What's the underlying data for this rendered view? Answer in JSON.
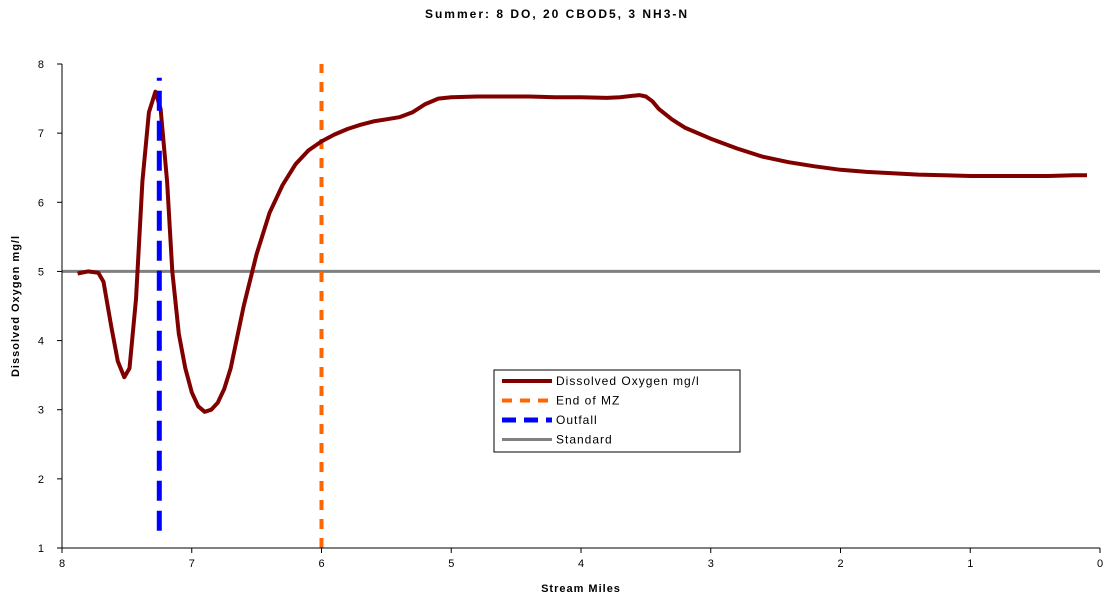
{
  "chart_data": {
    "type": "line",
    "title": "Summer: 8 DO, 20 CBOD5, 3 NH3-N",
    "xlabel": "Stream Miles",
    "ylabel": "Dissolved Oxygen mg/l",
    "xlim": [
      8,
      0
    ],
    "ylim": [
      1,
      8
    ],
    "x_ticks": [
      "8",
      "7",
      "6",
      "5",
      "4",
      "3",
      "2",
      "1",
      "0"
    ],
    "y_ticks": [
      "1",
      "2",
      "3",
      "4",
      "5",
      "6",
      "7",
      "8"
    ],
    "legend_position": "center-right",
    "grid": false,
    "series": [
      {
        "name": "Dissolved Oxygen mg/l",
        "color": "#800000",
        "style": "solid",
        "x": [
          7.88,
          7.8,
          7.72,
          7.68,
          7.62,
          7.57,
          7.52,
          7.48,
          7.43,
          7.38,
          7.33,
          7.28,
          7.24,
          7.19,
          7.15,
          7.1,
          7.05,
          7.0,
          6.95,
          6.9,
          6.85,
          6.8,
          6.75,
          6.7,
          6.6,
          6.5,
          6.4,
          6.3,
          6.2,
          6.1,
          6.0,
          5.9,
          5.8,
          5.7,
          5.6,
          5.5,
          5.4,
          5.3,
          5.2,
          5.1,
          5.0,
          4.8,
          4.6,
          4.4,
          4.2,
          4.0,
          3.8,
          3.7,
          3.6,
          3.55,
          3.5,
          3.45,
          3.4,
          3.3,
          3.2,
          3.0,
          2.8,
          2.6,
          2.4,
          2.2,
          2.0,
          1.8,
          1.6,
          1.4,
          1.2,
          1.0,
          0.8,
          0.6,
          0.4,
          0.2,
          0.1
        ],
        "y": [
          4.97,
          5.0,
          4.98,
          4.85,
          4.2,
          3.7,
          3.47,
          3.6,
          4.6,
          6.3,
          7.3,
          7.6,
          7.35,
          6.3,
          5.0,
          4.1,
          3.6,
          3.25,
          3.05,
          2.97,
          3.0,
          3.1,
          3.3,
          3.6,
          4.5,
          5.25,
          5.85,
          6.25,
          6.55,
          6.75,
          6.88,
          6.98,
          7.06,
          7.12,
          7.17,
          7.2,
          7.23,
          7.3,
          7.42,
          7.5,
          7.52,
          7.53,
          7.53,
          7.53,
          7.52,
          7.52,
          7.51,
          7.52,
          7.54,
          7.55,
          7.53,
          7.46,
          7.35,
          7.2,
          7.08,
          6.92,
          6.78,
          6.66,
          6.58,
          6.52,
          6.47,
          6.44,
          6.42,
          6.4,
          6.39,
          6.38,
          6.38,
          6.38,
          6.38,
          6.39,
          6.39
        ]
      },
      {
        "name": "End of MZ",
        "color": "#ff6600",
        "style": "dashed",
        "x": [
          6.0,
          6.0
        ],
        "y": [
          1,
          8
        ]
      },
      {
        "name": "Outfall",
        "color": "#0000ff",
        "style": "dashed",
        "x": [
          7.25,
          7.25
        ],
        "y": [
          1.25,
          7.8
        ]
      },
      {
        "name": "Standard",
        "color": "#808080",
        "style": "solid",
        "x": [
          8,
          0
        ],
        "y": [
          5,
          5
        ]
      }
    ]
  }
}
